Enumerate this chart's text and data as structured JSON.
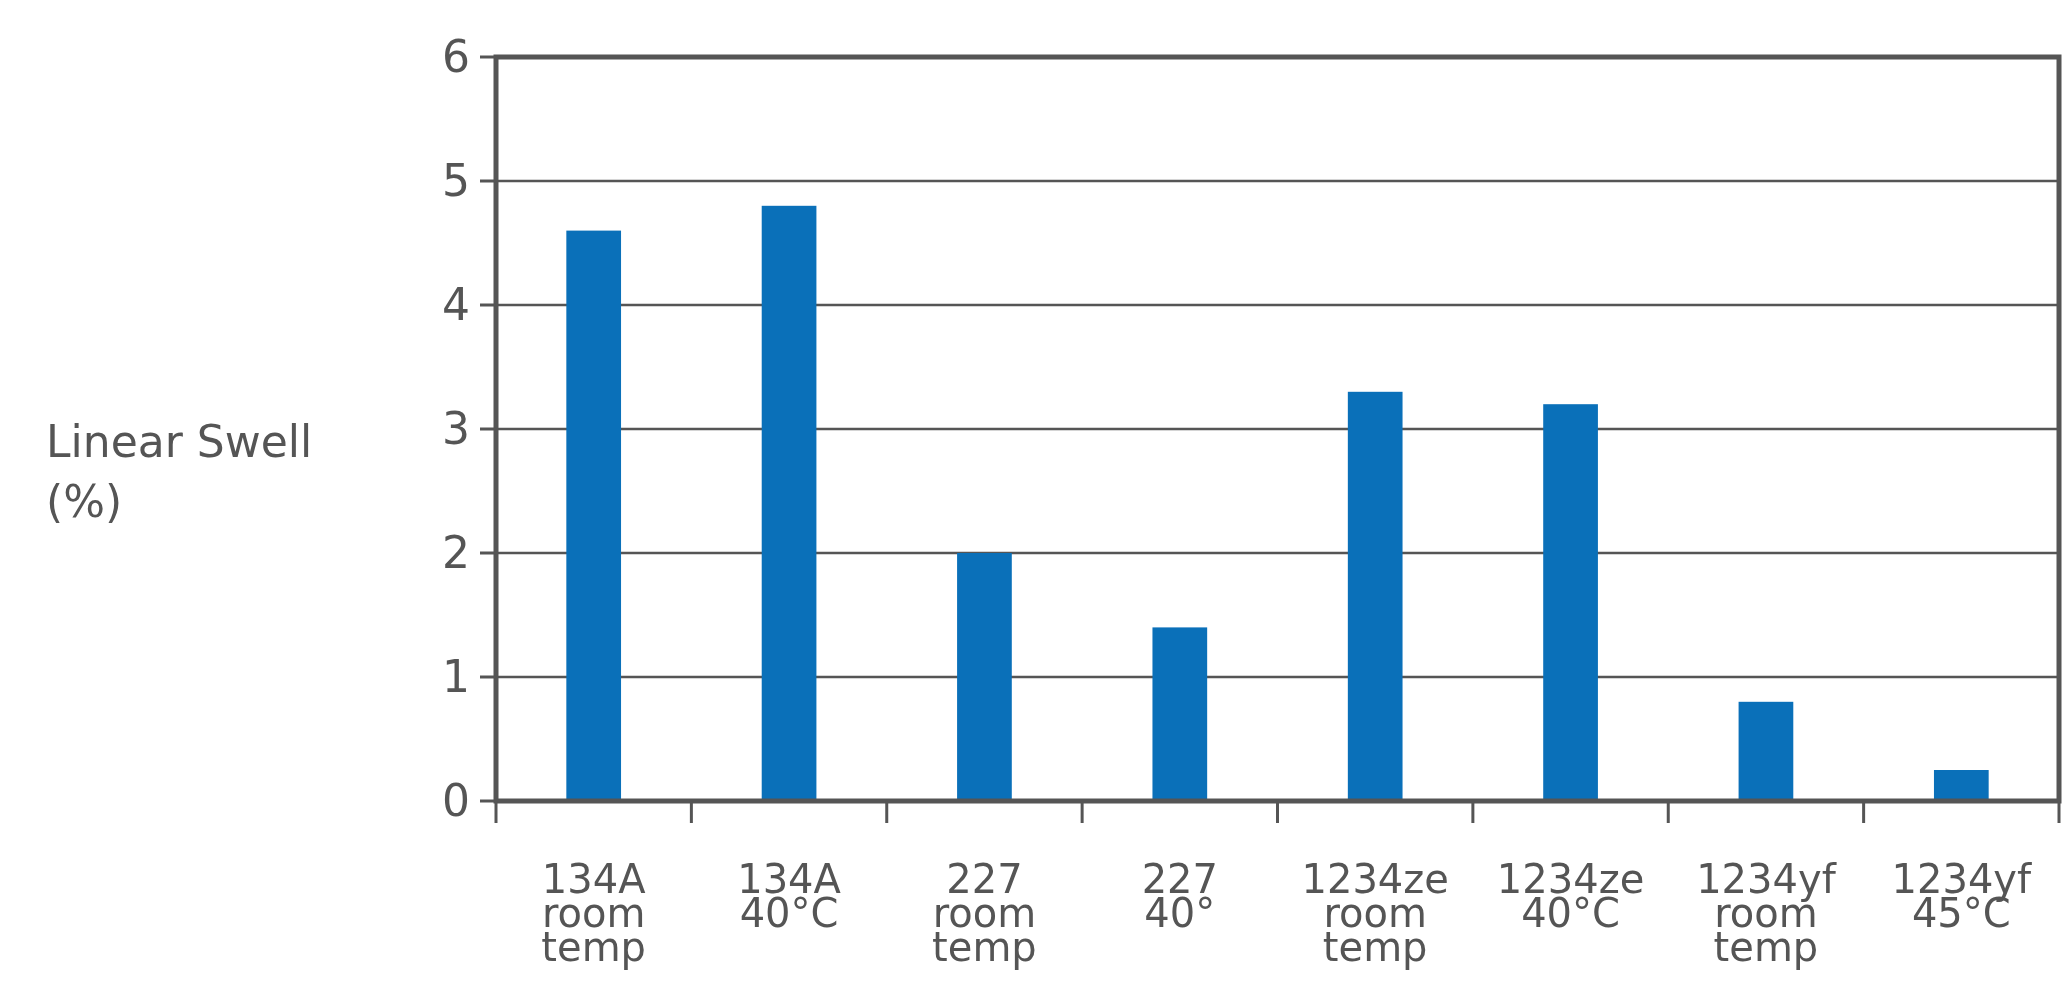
{
  "chart_data": {
    "type": "bar",
    "ylabel": "Linear Swell\n(%)",
    "categories": [
      "134A\nroom\ntemp",
      "134A\n40°C",
      "227\nroom\ntemp",
      "227\n40°",
      "1234ze\nroom\ntemp",
      "1234ze\n40°C",
      "1234yf\nroom\ntemp",
      "1234yf\n45°C"
    ],
    "values": [
      4.6,
      4.8,
      2.0,
      1.4,
      3.3,
      3.2,
      0.8,
      0.25
    ],
    "color": "#0a70b9",
    "ylim": [
      0,
      6
    ],
    "yticks": [
      0,
      1,
      2,
      3,
      4,
      5,
      6
    ],
    "grid": "y"
  }
}
